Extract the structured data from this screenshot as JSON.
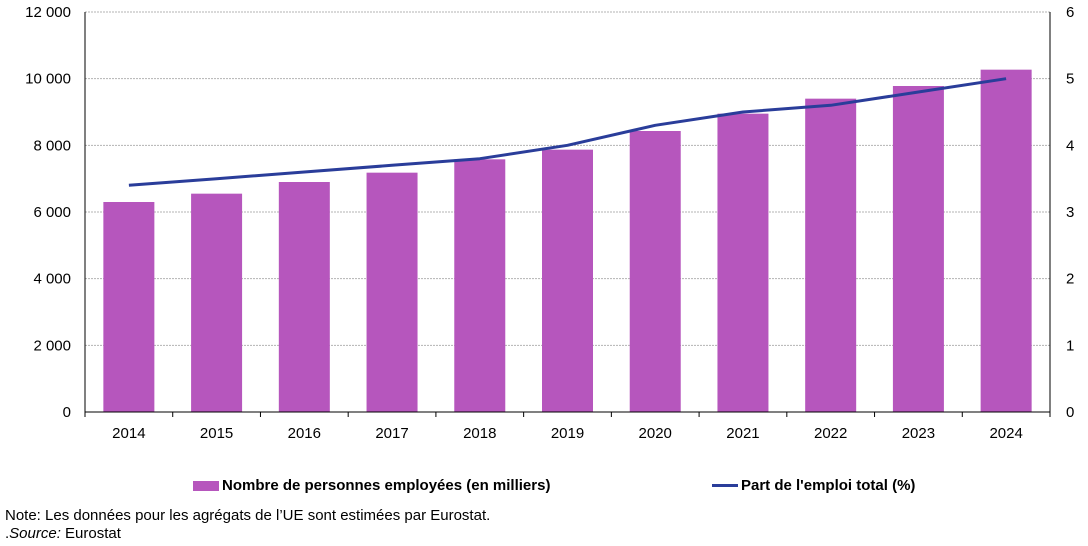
{
  "colors": {
    "bar": "#b656bd",
    "line": "#2a3d9a",
    "grid": "#b3b3b3",
    "axis": "#000000"
  },
  "chart_data": {
    "type": "bar",
    "categories": [
      "2014",
      "2015",
      "2016",
      "2017",
      "2018",
      "2019",
      "2020",
      "2021",
      "2022",
      "2023",
      "2024"
    ],
    "series": [
      {
        "name": "Nombre de personnes employées (en milliers)",
        "type": "bar",
        "axis": "left",
        "values": [
          6300,
          6550,
          6900,
          7180,
          7580,
          7870,
          8430,
          8950,
          9400,
          9780,
          10270
        ]
      },
      {
        "name": "Part de l'emploi total (%)",
        "type": "line",
        "axis": "right",
        "values": [
          3.4,
          3.5,
          3.6,
          3.7,
          3.8,
          4.0,
          4.3,
          4.5,
          4.6,
          4.8,
          5.0
        ]
      }
    ],
    "y_left": {
      "min": 0,
      "max": 12000,
      "ticks": [
        0,
        2000,
        4000,
        6000,
        8000,
        10000,
        12000
      ],
      "tick_labels": [
        "0",
        "2 000",
        "4 000",
        "6 000",
        "8 000",
        "10 000",
        "12 000"
      ]
    },
    "y_right": {
      "min": 0,
      "max": 6,
      "ticks": [
        0,
        1,
        2,
        3,
        4,
        5,
        6
      ],
      "tick_labels": [
        "0",
        "1",
        "2",
        "3",
        "4",
        "5",
        "6"
      ]
    },
    "grid": true,
    "legend_position": "bottom"
  },
  "legend": {
    "bar_label": "Nombre de personnes employées (en milliers)",
    "line_label": "Part de l'emploi total (%)"
  },
  "notes": {
    "note": "Note: Les données pour les agrégats de l’UE sont estimées par Eurostat.",
    "source_prefix": ".",
    "source_label": "Source:",
    "source_value": " Eurostat"
  }
}
